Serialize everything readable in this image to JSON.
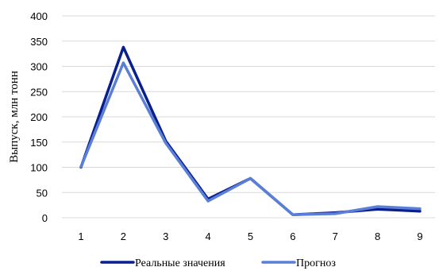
{
  "chart_data": {
    "type": "line",
    "title": "",
    "xlabel": "",
    "ylabel": "Выпуск, млн тонн",
    "categories": [
      "1",
      "2",
      "3",
      "4",
      "5",
      "6",
      "7",
      "8",
      "9"
    ],
    "ylim": [
      0,
      400
    ],
    "yticks": [
      0,
      50,
      100,
      150,
      200,
      250,
      300,
      350,
      400
    ],
    "grid": true,
    "legend_position": "bottom",
    "series": [
      {
        "name": "Реальные значения",
        "color": "#0a1f8f",
        "values": [
          100,
          338,
          152,
          37,
          78,
          6,
          10,
          17,
          13
        ]
      },
      {
        "name": "Прогноз",
        "color": "#5b7fd6",
        "values": [
          101,
          307,
          148,
          33,
          78,
          6,
          8,
          22,
          18
        ]
      }
    ]
  }
}
